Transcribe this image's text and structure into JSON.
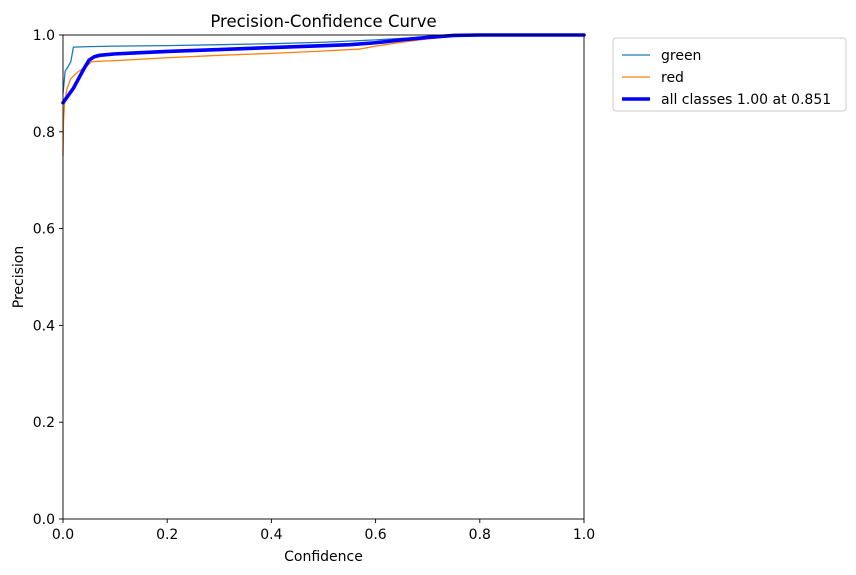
{
  "chart_data": {
    "type": "line",
    "title": "Precision-Confidence Curve",
    "xlabel": "Confidence",
    "ylabel": "Precision",
    "xlim": [
      0,
      1
    ],
    "ylim": [
      0,
      1
    ],
    "xticks": [
      0.0,
      0.2,
      0.4,
      0.6,
      0.8,
      1.0
    ],
    "xtick_labels": [
      "0.0",
      "0.2",
      "0.4",
      "0.6",
      "0.8",
      "1.0"
    ],
    "yticks": [
      0.0,
      0.2,
      0.4,
      0.6,
      0.8,
      1.0
    ],
    "ytick_labels": [
      "0.0",
      "0.2",
      "0.4",
      "0.6",
      "0.8",
      "1.0"
    ],
    "grid": false,
    "legend_position": "outside-top-right",
    "series": [
      {
        "name": "green",
        "color": "#1f77b4",
        "linewidth": "thin",
        "x": [
          0.0,
          0.002,
          0.004,
          0.01,
          0.015,
          0.02,
          0.05,
          0.1,
          0.2,
          0.3,
          0.4,
          0.5,
          0.6,
          0.65,
          0.7,
          0.75,
          0.8,
          0.9,
          1.0
        ],
        "y": [
          0.88,
          0.9,
          0.925,
          0.935,
          0.945,
          0.975,
          0.976,
          0.977,
          0.978,
          0.98,
          0.982,
          0.985,
          0.99,
          0.993,
          0.995,
          0.998,
          1.0,
          1.0,
          1.0
        ]
      },
      {
        "name": "red",
        "color": "#ff7f0e",
        "linewidth": "thin",
        "x": [
          0.0,
          0.001,
          0.003,
          0.008,
          0.015,
          0.03,
          0.045,
          0.055,
          0.1,
          0.2,
          0.3,
          0.4,
          0.5,
          0.57,
          0.6,
          0.65,
          0.7,
          0.75,
          0.8,
          0.9,
          1.0
        ],
        "y": [
          0.75,
          0.82,
          0.86,
          0.89,
          0.91,
          0.925,
          0.935,
          0.945,
          0.947,
          0.953,
          0.958,
          0.962,
          0.967,
          0.971,
          0.977,
          0.985,
          0.992,
          0.997,
          1.0,
          1.0,
          1.0
        ]
      },
      {
        "name": "all classes 1.00 at 0.851",
        "color": "#0000ff",
        "linewidth": "thick",
        "x": [
          0.0,
          0.01,
          0.02,
          0.03,
          0.04,
          0.05,
          0.06,
          0.07,
          0.1,
          0.2,
          0.3,
          0.4,
          0.5,
          0.55,
          0.6,
          0.65,
          0.7,
          0.75,
          0.8,
          0.851,
          0.9,
          1.0
        ],
        "y": [
          0.86,
          0.875,
          0.89,
          0.91,
          0.93,
          0.948,
          0.955,
          0.958,
          0.961,
          0.966,
          0.97,
          0.974,
          0.978,
          0.98,
          0.984,
          0.99,
          0.995,
          0.999,
          1.0,
          1.0,
          1.0,
          1.0
        ]
      }
    ]
  }
}
